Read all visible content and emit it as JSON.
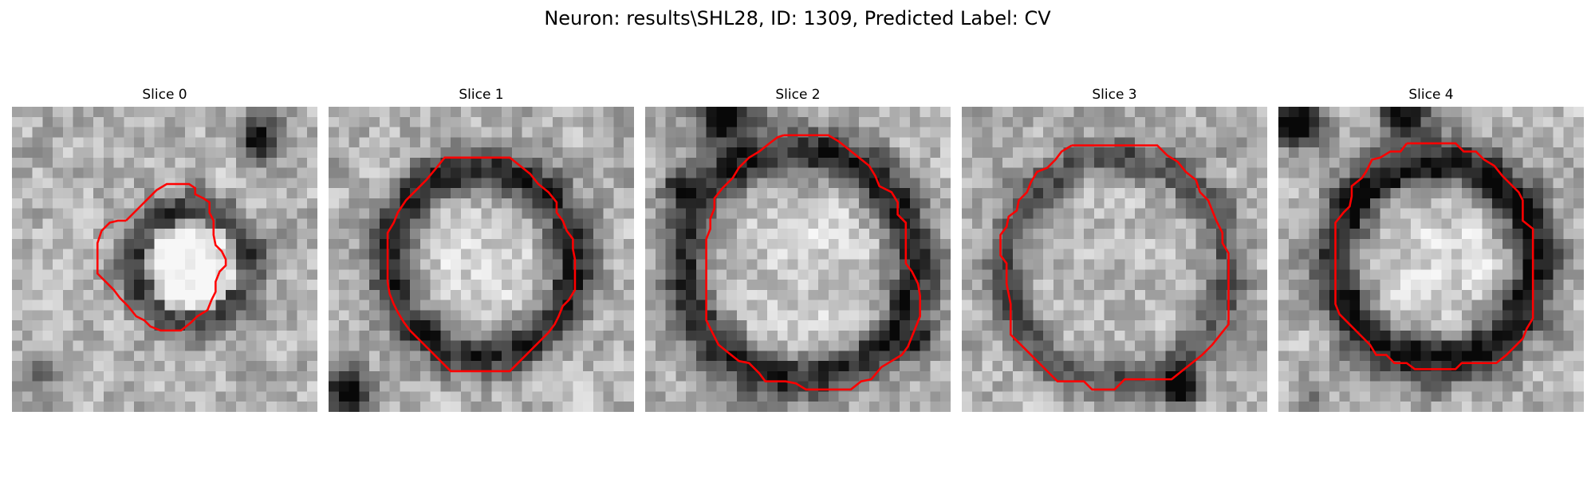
{
  "figure": {
    "title": "Neuron: results\\SHL28, ID: 1309, Predicted Label: CV"
  },
  "panels": [
    {
      "title": "Slice 0"
    },
    {
      "title": "Slice 1"
    },
    {
      "title": "Slice 2"
    },
    {
      "title": "Slice 3"
    },
    {
      "title": "Slice 4"
    }
  ],
  "colors": {
    "contour": "#ff0000",
    "colormap": "grayscale"
  }
}
